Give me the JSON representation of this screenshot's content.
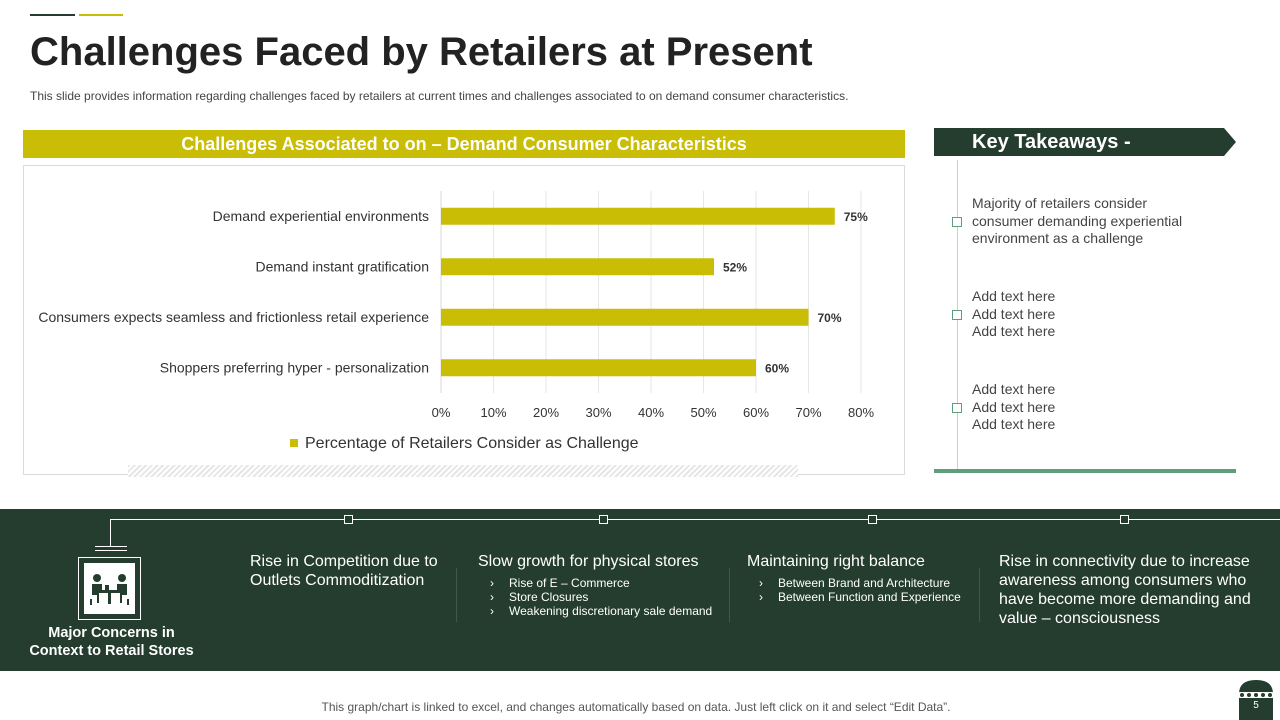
{
  "page": {
    "title": "Challenges Faced by Retailers at Present",
    "subtitle": "This slide provides  information regarding  challenges  faced  by retailers at current times and challenges associated to on demand  consumer characteristics.",
    "footer_note": "This graph/chart is linked to excel, and changes automatically based on data. Just left click on it and select “Edit Data”.",
    "page_number": "5"
  },
  "colors": {
    "olive": "#c9bd06",
    "dark_green": "#243d2e",
    "accent_green": "#5e9e7a"
  },
  "chart_header": "Challenges Associated to on – Demand Consumer Characteristics",
  "chart_data": {
    "type": "bar",
    "orientation": "horizontal",
    "categories": [
      "Demand experiential environments",
      "Demand instant gratification",
      "Consumers expects seamless and frictionless retail experience",
      "Shoppers preferring hyper - personalization"
    ],
    "series": [
      {
        "name": "Percentage of Retailers Consider as Challenge",
        "values": [
          75,
          52,
          70,
          60
        ],
        "color": "#c9bd06"
      }
    ],
    "data_labels": [
      "75%",
      "52%",
      "70%",
      "60%"
    ],
    "xlim": [
      0,
      80
    ],
    "xticks": [
      0,
      10,
      20,
      30,
      40,
      50,
      60,
      70,
      80
    ],
    "xtick_labels": [
      "0%",
      "10%",
      "20%",
      "30%",
      "40%",
      "50%",
      "60%",
      "70%",
      "80%"
    ],
    "grid": true,
    "legend_position": "bottom"
  },
  "key_takeaways": {
    "title": "Key Takeaways -",
    "items": [
      {
        "lines": [
          "Majority of retailers consider",
          "consumer demanding experiential",
          "environment as a challenge"
        ]
      },
      {
        "lines": [
          "Add text here",
          "Add text here",
          "Add text here"
        ]
      },
      {
        "lines": [
          "Add text here",
          "Add text here",
          "Add text here"
        ]
      }
    ]
  },
  "concerns": {
    "label_lines": [
      "Major Concerns in",
      "Context to Retail Stores"
    ],
    "icon": "meeting-table-icon",
    "columns": [
      {
        "title_lines": [
          "Rise in Competition due to",
          "Outlets Commoditization"
        ],
        "bullets": []
      },
      {
        "title_lines": [
          "Slow growth for physical stores"
        ],
        "bullets": [
          "Rise of E – Commerce",
          "Store Closures",
          "Weakening discretionary sale demand"
        ]
      },
      {
        "title_lines": [
          "Maintaining right balance"
        ],
        "bullets": [
          "Between Brand and Architecture",
          "Between Function and Experience"
        ]
      },
      {
        "title_lines": [
          "Rise in connectivity  due to increase",
          "awareness among consumers who",
          "have become more demanding and",
          "value – consciousness"
        ],
        "bullets": []
      }
    ]
  }
}
